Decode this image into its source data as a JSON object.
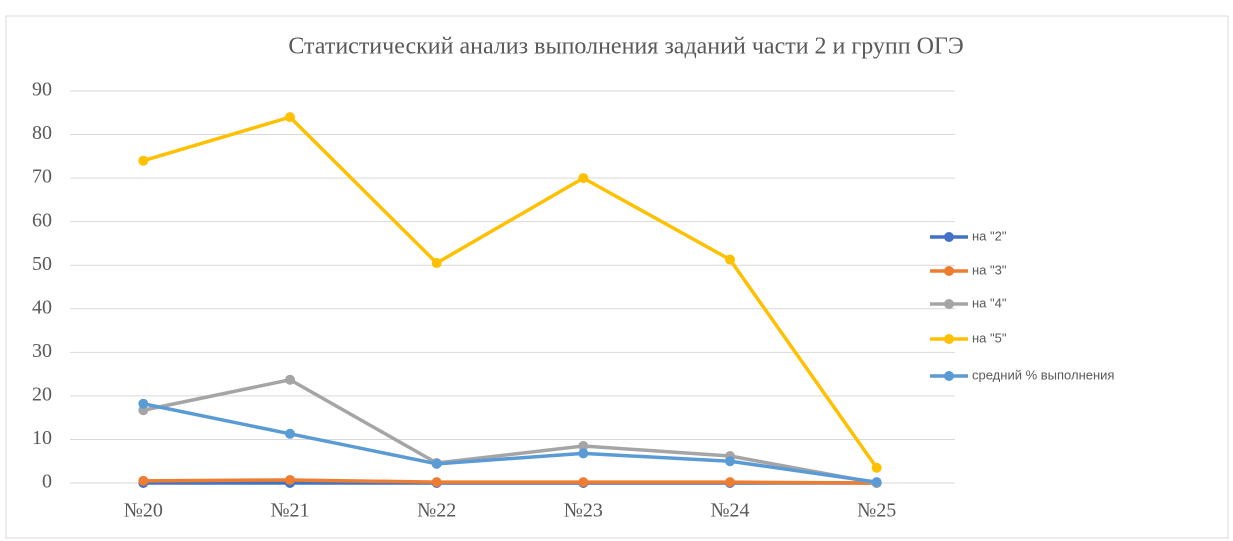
{
  "chart_data": {
    "type": "line",
    "title": "Статистический анализ выполнения заданий части 2 и групп ОГЭ",
    "categories": [
      "№20",
      "№21",
      "№22",
      "№23",
      "№24",
      "№25"
    ],
    "series": [
      {
        "name": "на \"2\"",
        "color": "#4472c4",
        "values": [
          0,
          0,
          0,
          0,
          0,
          0
        ]
      },
      {
        "name": "на \"3\"",
        "color": "#ed7d31",
        "values": [
          0.5,
          0.7,
          0.2,
          0.2,
          0.2,
          0
        ]
      },
      {
        "name": "на \"4\"",
        "color": "#a5a5a5",
        "values": [
          16.7,
          23.7,
          4.6,
          8.5,
          6.2,
          0
        ]
      },
      {
        "name": "на \"5\"",
        "color": "#ffc000",
        "values": [
          74,
          84,
          50.5,
          70,
          51.3,
          3.5
        ]
      },
      {
        "name": "средний % выполнения",
        "color": "#5b9bd5",
        "values": [
          18.2,
          11.3,
          4.4,
          6.8,
          5,
          0.2
        ]
      }
    ],
    "ylim": [
      0,
      90
    ],
    "yticks": [
      0,
      10,
      20,
      30,
      40,
      50,
      60,
      70,
      80,
      90
    ],
    "grid": true,
    "legend": "right"
  }
}
